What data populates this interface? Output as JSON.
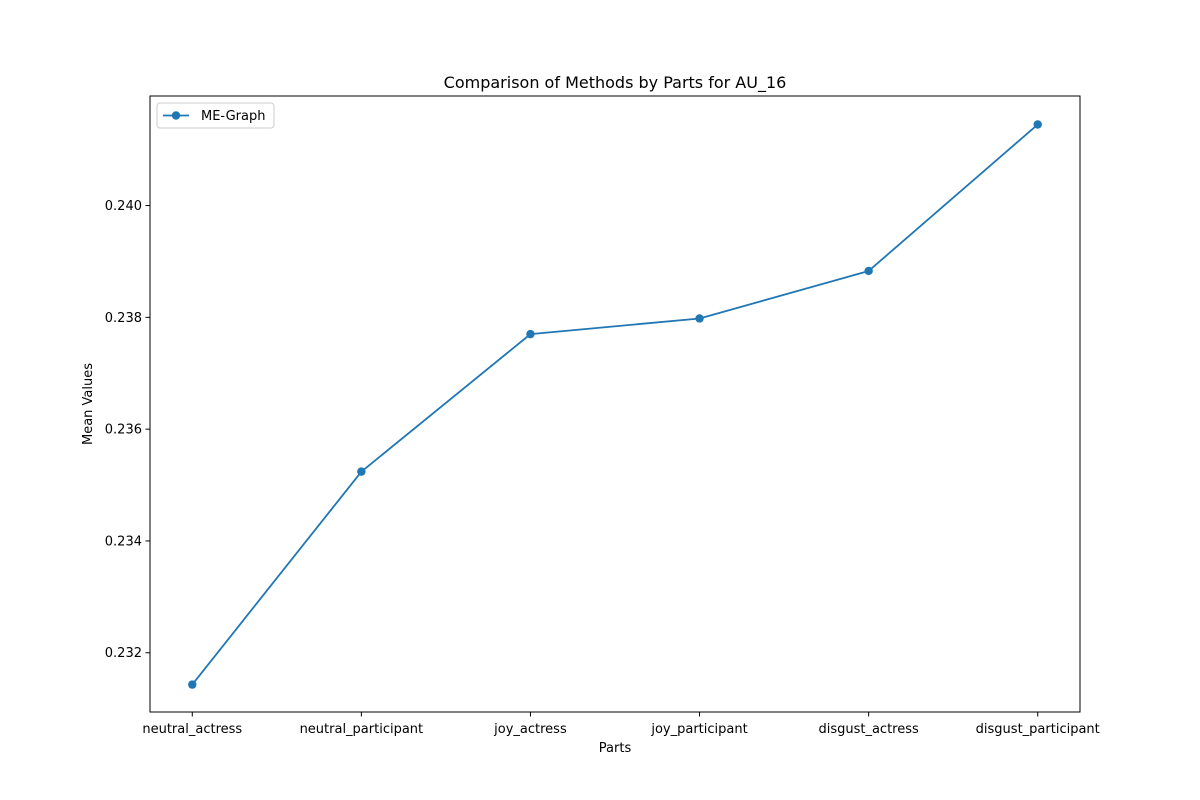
{
  "chart_data": {
    "type": "line",
    "title": "Comparison of Methods by Parts for AU_16",
    "xlabel": "Parts",
    "ylabel": "Mean Values",
    "categories": [
      "neutral_actress",
      "neutral_participant",
      "joy_actress",
      "joy_participant",
      "disgust_actress",
      "disgust_participant"
    ],
    "series": [
      {
        "name": "ME-Graph",
        "color": "#1f77b4",
        "values": [
          0.23143,
          0.23524,
          0.2377,
          0.23798,
          0.23883,
          0.24145
        ]
      }
    ],
    "ylim": [
      0.23094,
      0.24196
    ],
    "yticks": [
      0.232,
      0.234,
      0.236,
      0.238,
      0.24
    ],
    "ytick_labels": [
      "0.232",
      "0.234",
      "0.236",
      "0.238",
      "0.240"
    ],
    "grid": false,
    "legend_position": "upper left"
  }
}
